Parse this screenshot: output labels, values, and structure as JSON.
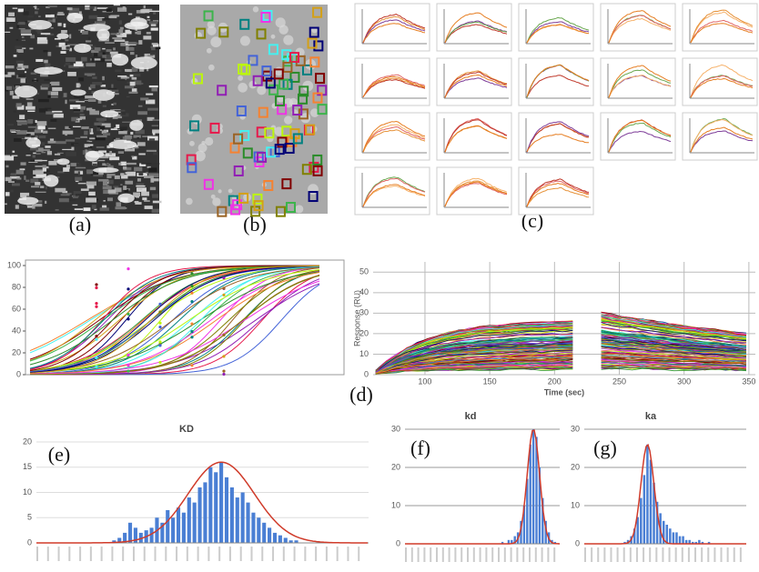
{
  "labels": [
    "(a)",
    "(b)",
    "(c)",
    "(d)",
    "(e)",
    "(f)",
    "(g)"
  ],
  "chart_data": [
    {
      "type": "line",
      "ylim": [
        0,
        105
      ],
      "yticks": [
        0,
        20,
        40,
        60,
        80,
        100
      ]
    },
    {
      "type": "line",
      "xlabel": "Time (sec)",
      "ylabel": "Response (RU)",
      "xlim": [
        60,
        355
      ],
      "xticks": [
        100,
        150,
        200,
        250,
        300,
        350
      ],
      "ylim": [
        0,
        55
      ],
      "yticks": [
        0,
        10,
        20,
        30,
        40,
        50
      ],
      "grid": true
    },
    {
      "type": "bar",
      "title": "KD",
      "color": "#4a7fd4",
      "ylim": [
        0,
        20
      ],
      "yticks": [
        0,
        5,
        10,
        15,
        20
      ],
      "grid": true,
      "values": [
        0,
        0,
        0,
        0,
        0,
        0,
        0,
        0,
        0,
        0,
        0,
        0,
        0,
        0,
        0.5,
        1,
        2,
        4,
        3,
        2,
        2.5,
        3,
        5,
        4,
        6.5,
        5,
        7,
        6,
        9,
        8,
        11,
        12,
        15,
        14,
        16,
        13,
        11,
        9,
        10,
        8,
        6,
        5,
        4,
        3,
        2,
        1.5,
        1,
        0.5,
        0.5,
        0,
        0,
        0,
        0,
        0,
        0,
        0,
        0,
        0,
        0,
        0,
        0,
        0
      ]
    },
    {
      "type": "bar",
      "title": "kd",
      "color": "#4a7fd4",
      "ylim": [
        0,
        30
      ],
      "yticks": [
        0,
        10,
        20,
        30
      ],
      "grid": true,
      "values": [
        0,
        0,
        0,
        0,
        0,
        0,
        0,
        0,
        0,
        0,
        0,
        0,
        0,
        0,
        0,
        0,
        0,
        0,
        0,
        0,
        0,
        0,
        0,
        0,
        0,
        0,
        0,
        0,
        0,
        0,
        0,
        0.5,
        0,
        1,
        1,
        2,
        3,
        6,
        10,
        17,
        26,
        30,
        28,
        20,
        12,
        6,
        3,
        1,
        0.5,
        0
      ]
    },
    {
      "type": "bar",
      "title": "ka",
      "color": "#4a7fd4",
      "ylim": [
        0,
        30
      ],
      "yticks": [
        0,
        10,
        20,
        30
      ],
      "grid": true,
      "values": [
        0,
        0,
        0,
        0,
        0,
        0,
        0,
        0,
        0,
        0,
        0,
        0,
        0.5,
        1,
        2,
        4,
        7,
        12,
        18,
        26,
        22,
        16,
        11,
        8,
        6,
        5,
        4,
        3,
        3,
        2,
        2,
        1,
        1,
        0.5,
        0.5,
        1,
        0.5,
        0,
        0.5,
        0,
        0,
        0,
        0,
        0,
        0,
        0,
        0,
        0,
        0,
        0
      ]
    }
  ]
}
